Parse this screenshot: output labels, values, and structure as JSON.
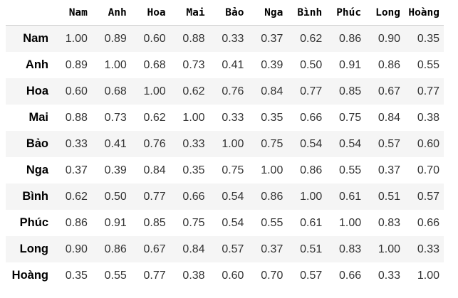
{
  "table": {
    "index_header": "",
    "columns": [
      "Nam",
      "Anh",
      "Hoa",
      "Mai",
      "Bảo",
      "Nga",
      "Bình",
      "Phúc",
      "Long",
      "Hoàng"
    ],
    "rows": [
      {
        "label": "Nam",
        "values": [
          "1.00",
          "0.89",
          "0.60",
          "0.88",
          "0.33",
          "0.37",
          "0.62",
          "0.86",
          "0.90",
          "0.35"
        ]
      },
      {
        "label": "Anh",
        "values": [
          "0.89",
          "1.00",
          "0.68",
          "0.73",
          "0.41",
          "0.39",
          "0.50",
          "0.91",
          "0.86",
          "0.55"
        ]
      },
      {
        "label": "Hoa",
        "values": [
          "0.60",
          "0.68",
          "1.00",
          "0.62",
          "0.76",
          "0.84",
          "0.77",
          "0.85",
          "0.67",
          "0.77"
        ]
      },
      {
        "label": "Mai",
        "values": [
          "0.88",
          "0.73",
          "0.62",
          "1.00",
          "0.33",
          "0.35",
          "0.66",
          "0.75",
          "0.84",
          "0.38"
        ]
      },
      {
        "label": "Bảo",
        "values": [
          "0.33",
          "0.41",
          "0.76",
          "0.33",
          "1.00",
          "0.75",
          "0.54",
          "0.54",
          "0.57",
          "0.60"
        ]
      },
      {
        "label": "Nga",
        "values": [
          "0.37",
          "0.39",
          "0.84",
          "0.35",
          "0.75",
          "1.00",
          "0.86",
          "0.55",
          "0.37",
          "0.70"
        ]
      },
      {
        "label": "Bình",
        "values": [
          "0.62",
          "0.50",
          "0.77",
          "0.66",
          "0.54",
          "0.86",
          "1.00",
          "0.61",
          "0.51",
          "0.57"
        ]
      },
      {
        "label": "Phúc",
        "values": [
          "0.86",
          "0.91",
          "0.85",
          "0.75",
          "0.54",
          "0.55",
          "0.61",
          "1.00",
          "0.83",
          "0.66"
        ]
      },
      {
        "label": "Long",
        "values": [
          "0.90",
          "0.86",
          "0.67",
          "0.84",
          "0.57",
          "0.37",
          "0.51",
          "0.83",
          "1.00",
          "0.33"
        ]
      },
      {
        "label": "Hoàng",
        "values": [
          "0.35",
          "0.55",
          "0.77",
          "0.38",
          "0.60",
          "0.70",
          "0.57",
          "0.66",
          "0.33",
          "1.00"
        ]
      }
    ]
  },
  "colors": {
    "row_stripe": "#f5f5f5",
    "header_rule": "#cfcfcf",
    "cell_text": "#333333"
  }
}
